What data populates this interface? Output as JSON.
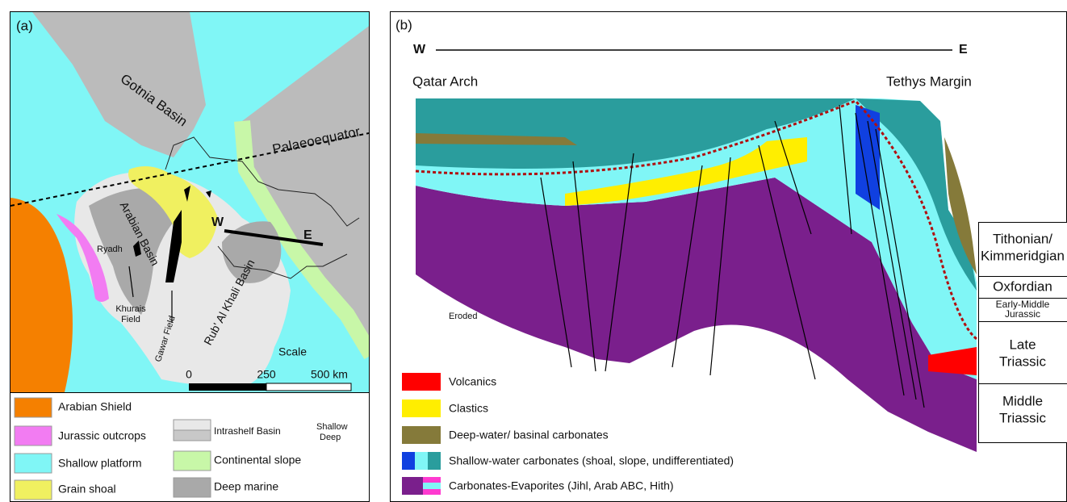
{
  "panel_a": {
    "label": "(a)",
    "map": {
      "gotnia_basin": "Gotnia Basin",
      "palaeoequator": "Palaeoequator",
      "arabian_basin": "Arabian Basin",
      "section_start": "W",
      "section_end": "E",
      "ryadh": "Ryadh",
      "khurais_field": [
        "Khurais",
        "Field"
      ],
      "gawar_field": "Gawar Field",
      "rub_al_khali_basin": "Rub' Al Khali Basin",
      "scale": {
        "title": "Scale",
        "ticks": [
          "0",
          "250",
          "500 km"
        ]
      }
    },
    "legend": {
      "arabian_shield": "Arabian Shield",
      "jurassic_outcrops": "Jurassic outcrops",
      "shallow_platform": "Shallow platform",
      "grain_shoal": "Grain shoal",
      "intrashelf_basin": "Intrashelf Basin",
      "shallow": "Shallow",
      "deep": "Deep",
      "continental_slope": "Continental slope",
      "deep_marine": "Deep marine"
    }
  },
  "panel_b": {
    "label": "(b)",
    "west": "W",
    "east": "E",
    "qatar_arch": "Qatar Arch",
    "tethys_margin": "Tethys Margin",
    "eroded": "Eroded",
    "legend": [
      "Volcanics",
      "Clastics",
      "Deep-water/ basinal carbonates",
      "Shallow-water carbonates (shoal, slope, undifferentiated)",
      "Carbonates-Evaporites (Jihl, Arab ABC, Hith)"
    ],
    "stratigraphy": [
      [
        "Tithonian/",
        "Kimmeridgian"
      ],
      [
        "Oxfordian"
      ],
      [
        "Early-Middle",
        "Jurassic"
      ],
      [
        "Late",
        "Triassic"
      ],
      [
        "Middle",
        "Triassic"
      ]
    ]
  }
}
